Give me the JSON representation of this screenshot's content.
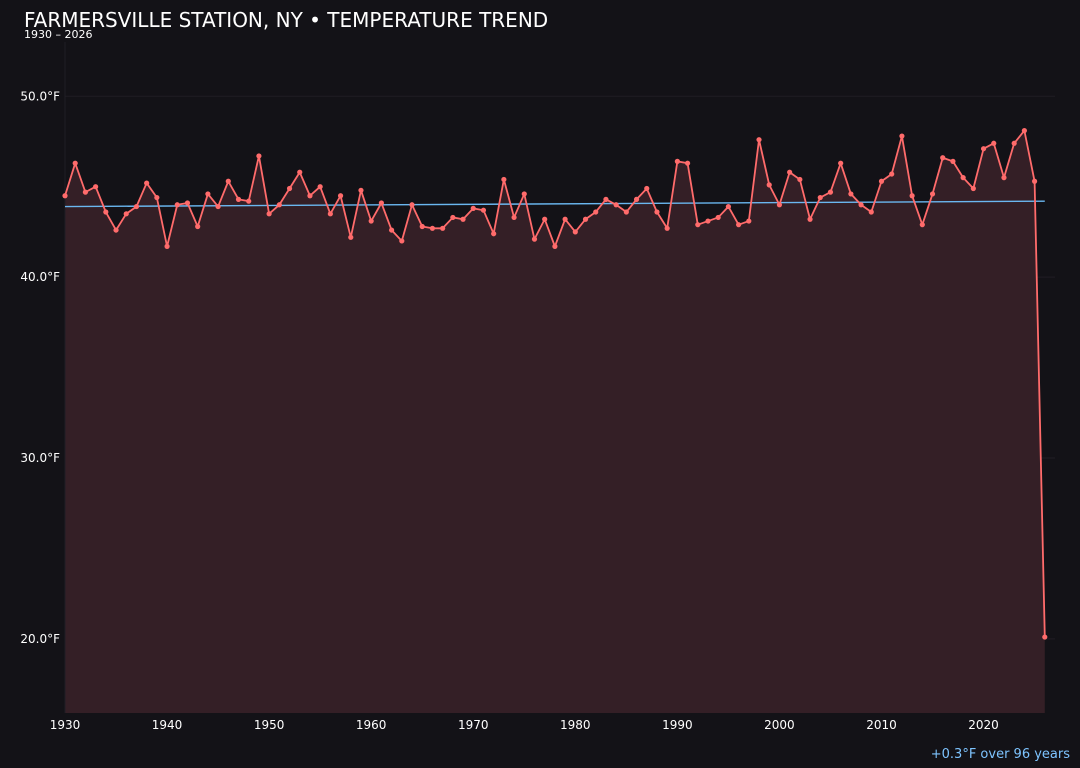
{
  "header": {
    "title": "FARMERSVILLE STATION, NY • TEMPERATURE TREND",
    "subtitle": "1930 – 2026"
  },
  "footer": {
    "trend_note": "+0.3°F over 96 years"
  },
  "colors": {
    "background": "#131217",
    "series_line": "#ff6b6b",
    "series_fill": "#341f26",
    "trend_line": "#6ab7f0",
    "trend_text": "#7ec4ff",
    "gridline": "#201d24"
  },
  "chart_data": {
    "type": "line",
    "title": "FARMERSVILLE STATION, NY • TEMPERATURE TREND",
    "subtitle": "1930 – 2026",
    "xlabel": "",
    "ylabel": "",
    "x_ticks": [
      1930,
      1940,
      1950,
      1960,
      1970,
      1980,
      1990,
      2000,
      2010,
      2020
    ],
    "y_ticks": [
      20.0,
      30.0,
      40.0,
      50.0
    ],
    "y_tick_labels": [
      "20.0°F",
      "30.0°F",
      "40.0°F",
      "50.0°F"
    ],
    "xlim": [
      1930,
      2027
    ],
    "ylim": [
      15.9,
      53.0
    ],
    "grid": "horizontal",
    "area_fill": true,
    "series": [
      {
        "x": [
          1930,
          1931,
          1932,
          1933,
          1934,
          1935,
          1936,
          1937,
          1938,
          1939,
          1940,
          1941,
          1942,
          1943,
          1944,
          1945,
          1946,
          1947,
          1948,
          1949,
          1950,
          1951,
          1952,
          1953,
          1954,
          1955,
          1956,
          1957,
          1958,
          1959,
          1960,
          1961,
          1962,
          1963,
          1964,
          1965,
          1966,
          1967,
          1968,
          1969,
          1970,
          1971,
          1972,
          1973,
          1974,
          1975,
          1976,
          1977,
          1978,
          1979,
          1980,
          1981,
          1982,
          1983,
          1984,
          1985,
          1986,
          1987,
          1988,
          1989,
          1990,
          1991,
          1992,
          1993,
          1994,
          1995,
          1996,
          1997,
          1998,
          1999,
          2000,
          2001,
          2002,
          2003,
          2004,
          2005,
          2006,
          2007,
          2008,
          2009,
          2010,
          2011,
          2012,
          2013,
          2014,
          2015,
          2016,
          2017,
          2018,
          2019,
          2020,
          2021,
          2022,
          2023,
          2024,
          2025,
          2026
        ],
        "values": [
          44.5,
          46.3,
          44.7,
          45.0,
          43.6,
          42.6,
          43.5,
          43.9,
          45.2,
          44.4,
          41.7,
          44.0,
          44.1,
          42.8,
          44.6,
          43.9,
          45.3,
          44.3,
          44.2,
          46.7,
          43.5,
          44.0,
          44.9,
          45.8,
          44.5,
          45.0,
          43.5,
          44.5,
          42.2,
          44.8,
          43.1,
          44.1,
          42.6,
          42.0,
          44.0,
          42.8,
          42.7,
          42.7,
          43.3,
          43.2,
          43.8,
          43.7,
          42.4,
          45.4,
          43.3,
          44.6,
          42.1,
          43.2,
          41.7,
          43.2,
          42.5,
          43.2,
          43.6,
          44.3,
          44.0,
          43.6,
          44.3,
          44.9,
          43.6,
          42.7,
          46.4,
          46.3,
          42.9,
          43.1,
          43.3,
          43.9,
          42.9,
          43.1,
          47.6,
          45.1,
          44.0,
          45.8,
          45.4,
          43.2,
          44.4,
          44.7,
          46.3,
          44.6,
          44.0,
          43.6,
          45.3,
          45.7,
          47.8,
          44.5,
          42.9,
          44.6,
          46.6,
          46.4,
          45.5,
          44.9,
          47.1,
          47.4,
          45.5,
          47.4,
          48.1,
          45.3,
          20.1
        ]
      }
    ],
    "trend": {
      "start_year": 1930,
      "end_year": 2026,
      "start_value": 43.9,
      "end_value": 44.2,
      "label": "+0.3°F over 96 years"
    }
  }
}
